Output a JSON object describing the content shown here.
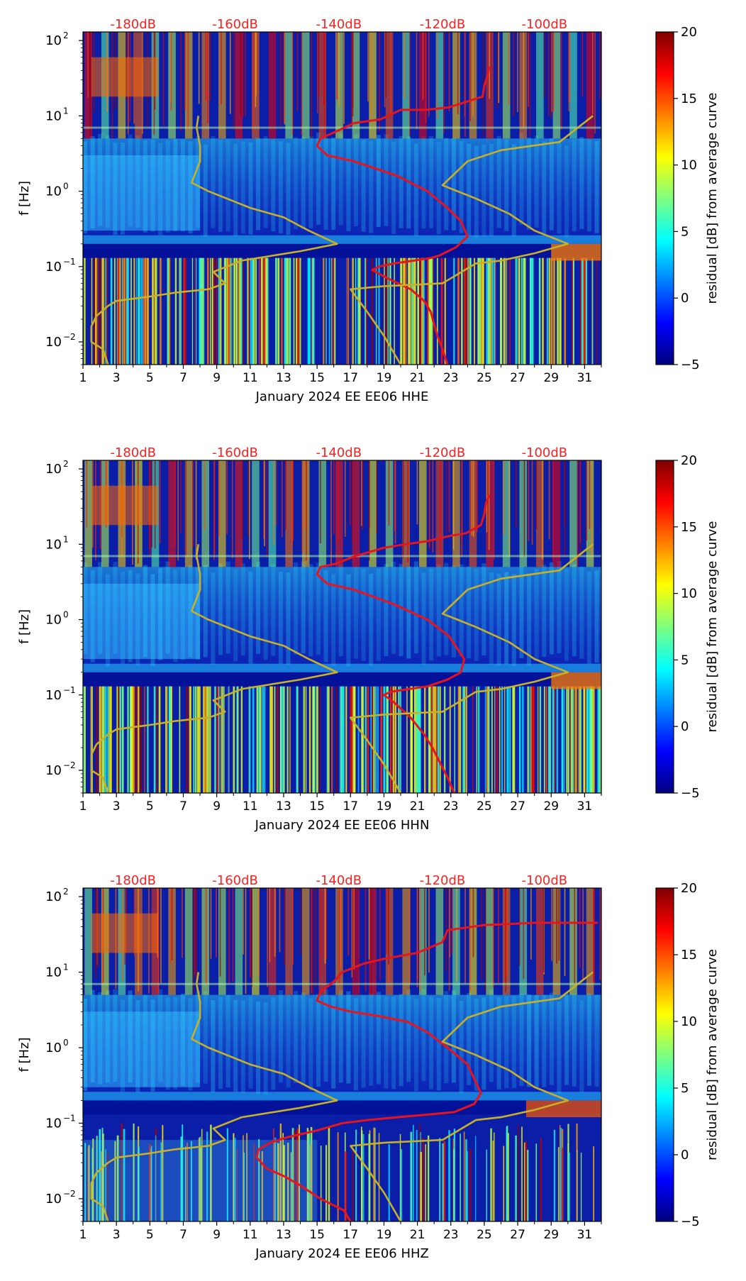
{
  "figure": {
    "colorbar_label": "residual [dB] from average curve",
    "colorbar_ticks": [
      "20",
      "15",
      "10",
      "5",
      "0",
      "−5"
    ],
    "y_ticks": [
      {
        "label": "10",
        "exp": "2",
        "value": 100
      },
      {
        "label": "10",
        "exp": "1",
        "value": 10
      },
      {
        "label": "10",
        "exp": "0",
        "value": 1
      },
      {
        "label": "10",
        "exp": "−1",
        "value": 0.1
      },
      {
        "label": "10",
        "exp": "−2",
        "value": 0.01
      }
    ],
    "ylabel": "f [Hz]",
    "x_ticks": [
      "1",
      "3",
      "5",
      "7",
      "9",
      "11",
      "13",
      "15",
      "17",
      "19",
      "21",
      "23",
      "25",
      "27",
      "29",
      "31"
    ],
    "db_labels": [
      "-180dB",
      "-160dB",
      "-140dB",
      "-120dB",
      "-100dB"
    ],
    "colors": {
      "db_label": "#ff2020",
      "psd_line": "#e8141c",
      "model_line": "#c8b028",
      "axis": "#000000"
    }
  },
  "chart_data": [
    {
      "type": "heatmap",
      "title": "",
      "xlabel": "January 2024 EE EE06  HHE",
      "ylabel": "f [Hz]",
      "xlim": [
        1,
        32
      ],
      "ylim": [
        0.005,
        130
      ],
      "yscale": "log",
      "clim": [
        -5,
        20
      ],
      "colorbar_label": "residual [dB] from average curve",
      "db_top_labels": [
        "-180dB",
        "-160dB",
        "-140dB",
        "-120dB",
        "-100dB"
      ],
      "db_label_days": [
        4,
        10.1,
        16.3,
        22.5,
        28.6
      ],
      "series": [
        {
          "name": "median PSD (red)",
          "x": [
            25.3,
            25.2,
            25.0,
            24.9,
            23.8,
            22.9,
            21.5,
            20.0,
            18.8,
            17.2,
            16.0,
            15.2,
            15.0,
            15.6,
            17.2,
            18.5,
            19.8,
            21.6,
            22.8,
            23.6,
            24.0,
            23.3,
            22.3,
            21.8,
            20.8,
            19.6,
            18.7,
            18.3,
            19.2,
            20.6,
            21.4,
            21.8,
            22.0,
            22.2,
            22.5,
            22.8
          ],
          "y": [
            45,
            35,
            25,
            18,
            15,
            13,
            12,
            12,
            9,
            8,
            6,
            5,
            4,
            3,
            2.5,
            2.0,
            1.6,
            1.0,
            0.6,
            0.4,
            0.25,
            0.18,
            0.14,
            0.13,
            0.12,
            0.11,
            0.1,
            0.09,
            0.07,
            0.05,
            0.035,
            0.025,
            0.017,
            0.012,
            0.008,
            0.005
          ]
        },
        {
          "name": "noise model (yellow)",
          "x": [
            7.9,
            7.8,
            8.0,
            8.0,
            7.5,
            8.5,
            11.0,
            13.0,
            14.5,
            16.2,
            14.0,
            10.5,
            8.8,
            9.5,
            8.5,
            6.5,
            5.0,
            3.0,
            2.5,
            1.8,
            1.5,
            1.5,
            2.2,
            2.5
          ],
          "y": [
            10,
            7,
            4,
            2.5,
            1.3,
            1.0,
            0.6,
            0.45,
            0.3,
            0.2,
            0.16,
            0.12,
            0.085,
            0.06,
            0.05,
            0.045,
            0.04,
            0.035,
            0.03,
            0.022,
            0.016,
            0.01,
            0.008,
            0.005
          ]
        },
        {
          "name": "noise model right (yellow)",
          "x": [
            31.5,
            29.5,
            26.0,
            24.0,
            22.5,
            24.5,
            26.5,
            28.0,
            30.0,
            28.0,
            26.0,
            24.5,
            22.5,
            19.0,
            17.0,
            18.0,
            19.0,
            20.0
          ],
          "y": [
            10,
            4.5,
            3.5,
            2.5,
            1.2,
            0.8,
            0.5,
            0.3,
            0.2,
            0.15,
            0.12,
            0.11,
            0.06,
            0.055,
            0.05,
            0.025,
            0.012,
            0.005
          ]
        }
      ]
    },
    {
      "type": "heatmap",
      "title": "",
      "xlabel": "January 2024 EE EE06  HHN",
      "ylabel": "f [Hz]",
      "xlim": [
        1,
        32
      ],
      "ylim": [
        0.005,
        130
      ],
      "yscale": "log",
      "clim": [
        -5,
        20
      ],
      "colorbar_label": "residual [dB] from average curve",
      "db_top_labels": [
        "-180dB",
        "-160dB",
        "-140dB",
        "-120dB",
        "-100dB"
      ],
      "db_label_days": [
        4,
        10.1,
        16.3,
        22.5,
        28.6
      ],
      "series": [
        {
          "name": "median PSD (red)",
          "x": [
            25.3,
            25.1,
            25.0,
            24.8,
            23.9,
            23.0,
            21.6,
            20.3,
            19.0,
            17.3,
            16.1,
            15.2,
            15.0,
            15.6,
            17.2,
            18.4,
            19.6,
            21.6,
            22.9,
            23.8,
            23.6,
            22.8,
            21.6,
            20.5,
            19.4,
            19.0,
            19.6,
            20.6,
            21.4,
            21.9,
            22.4,
            22.8,
            23.2
          ],
          "y": [
            45,
            35,
            25,
            18,
            14,
            13,
            11,
            10,
            9,
            7,
            5.5,
            5,
            4,
            3,
            2.5,
            2.0,
            1.6,
            1.0,
            0.6,
            0.3,
            0.2,
            0.16,
            0.13,
            0.12,
            0.11,
            0.1,
            0.08,
            0.05,
            0.03,
            0.02,
            0.012,
            0.008,
            0.005
          ]
        },
        {
          "name": "noise model (yellow)",
          "x": [
            7.9,
            7.8,
            8.0,
            8.0,
            7.5,
            8.5,
            11.0,
            13.0,
            14.5,
            16.2,
            14.0,
            10.5,
            8.8,
            9.5,
            8.5,
            6.5,
            5.0,
            3.0,
            2.5,
            1.8,
            1.5,
            1.5,
            2.2,
            2.5
          ],
          "y": [
            10,
            7,
            4,
            2.5,
            1.3,
            1.0,
            0.6,
            0.45,
            0.3,
            0.2,
            0.16,
            0.12,
            0.085,
            0.06,
            0.05,
            0.045,
            0.04,
            0.035,
            0.03,
            0.022,
            0.016,
            0.01,
            0.008,
            0.005
          ]
        },
        {
          "name": "noise model right (yellow)",
          "x": [
            31.5,
            29.5,
            26.0,
            24.0,
            22.5,
            24.5,
            26.5,
            28.0,
            30.0,
            28.0,
            26.0,
            24.5,
            22.5,
            19.0,
            17.0,
            18.0,
            19.0,
            20.0
          ],
          "y": [
            10,
            4.5,
            3.5,
            2.5,
            1.2,
            0.8,
            0.5,
            0.3,
            0.2,
            0.15,
            0.12,
            0.11,
            0.06,
            0.055,
            0.05,
            0.025,
            0.012,
            0.005
          ]
        }
      ]
    },
    {
      "type": "heatmap",
      "title": "",
      "xlabel": "January 2024 EE EE06  HHZ",
      "ylabel": "f [Hz]",
      "xlim": [
        1,
        32
      ],
      "ylim": [
        0.005,
        130
      ],
      "yscale": "log",
      "clim": [
        -5,
        20
      ],
      "colorbar_label": "residual [dB] from average curve",
      "db_top_labels": [
        "-180dB",
        "-160dB",
        "-140dB",
        "-120dB",
        "-100dB"
      ],
      "db_label_days": [
        4,
        10.1,
        16.3,
        22.5,
        28.6
      ],
      "series": [
        {
          "name": "median PSD (red)",
          "x": [
            31.8,
            28.0,
            25.0,
            22.8,
            22.5,
            21.0,
            19.0,
            17.8,
            16.5,
            16.0,
            15.2,
            15.0,
            15.8,
            17.0,
            18.8,
            20.4,
            21.6,
            22.8,
            24.0,
            24.8,
            24.4,
            23.2,
            21.6,
            19.8,
            18.0,
            16.5,
            15.0,
            13.2,
            12.2,
            11.5,
            11.4,
            12.0,
            13.0,
            14.0,
            15.2,
            16.6,
            17.0
          ],
          "y": [
            45,
            45,
            42,
            36,
            25,
            18,
            15,
            13,
            10,
            7.5,
            5.5,
            4.2,
            3.5,
            3,
            2.6,
            2.2,
            1.6,
            1.0,
            0.6,
            0.25,
            0.18,
            0.14,
            0.13,
            0.12,
            0.11,
            0.1,
            0.08,
            0.065,
            0.055,
            0.045,
            0.035,
            0.025,
            0.02,
            0.015,
            0.01,
            0.007,
            0.005
          ]
        },
        {
          "name": "noise model (yellow)",
          "x": [
            7.9,
            7.8,
            8.0,
            8.0,
            7.5,
            8.5,
            11.0,
            13.0,
            14.5,
            16.2,
            14.0,
            10.5,
            8.8,
            9.5,
            8.5,
            6.5,
            5.0,
            3.0,
            2.5,
            1.8,
            1.5,
            1.5,
            2.2,
            2.5
          ],
          "y": [
            10,
            7,
            4,
            2.5,
            1.3,
            1.0,
            0.6,
            0.45,
            0.3,
            0.2,
            0.16,
            0.12,
            0.085,
            0.06,
            0.05,
            0.045,
            0.04,
            0.035,
            0.03,
            0.022,
            0.016,
            0.01,
            0.008,
            0.005
          ]
        },
        {
          "name": "noise model right (yellow)",
          "x": [
            31.5,
            29.5,
            26.0,
            24.0,
            22.5,
            24.5,
            26.5,
            28.0,
            30.0,
            28.0,
            26.0,
            24.5,
            22.5,
            19.0,
            17.0,
            18.0,
            19.0,
            20.0
          ],
          "y": [
            10,
            4.5,
            3.5,
            2.5,
            1.2,
            0.8,
            0.5,
            0.3,
            0.2,
            0.15,
            0.12,
            0.11,
            0.06,
            0.055,
            0.05,
            0.025,
            0.012,
            0.005
          ]
        }
      ]
    }
  ]
}
